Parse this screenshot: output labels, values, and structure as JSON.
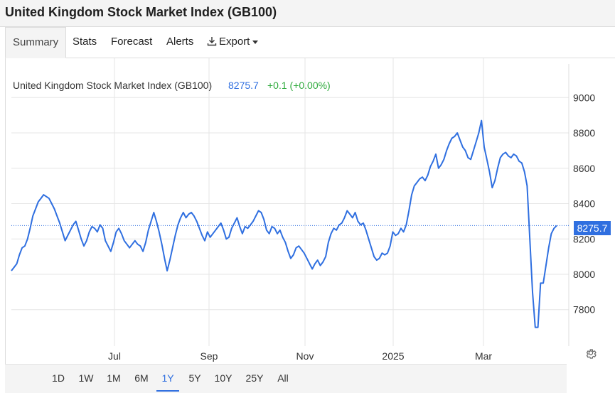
{
  "header": {
    "title": "United Kingdom Stock Market Index (GB100)"
  },
  "tabs": [
    {
      "label": "Summary",
      "active": true
    },
    {
      "label": "Stats"
    },
    {
      "label": "Forecast"
    },
    {
      "label": "Alerts"
    },
    {
      "label": "Export",
      "icon": "download-icon"
    }
  ],
  "legend": {
    "name": "United Kingdom Stock Market Index (GB100)",
    "price": "8275.7",
    "change": "+0.1 (+0.00%)"
  },
  "last_price_tag": "8275.7",
  "ranges": [
    {
      "label": "1D"
    },
    {
      "label": "1W"
    },
    {
      "label": "1M"
    },
    {
      "label": "6M"
    },
    {
      "label": "1Y",
      "active": true
    },
    {
      "label": "5Y"
    },
    {
      "label": "10Y"
    },
    {
      "label": "25Y"
    },
    {
      "label": "All"
    }
  ],
  "colors": {
    "line": "#2f6fe0",
    "positive": "#2eaa3c",
    "grid": "#e6e6e6"
  },
  "chart_data": {
    "type": "line",
    "title": "",
    "xlabel": "",
    "ylabel": "",
    "x_ticks": [
      "Jul",
      "Sep",
      "Nov",
      "2025",
      "Mar"
    ],
    "y_ticks": [
      7800,
      8000,
      8200,
      8400,
      8600,
      8800,
      9000
    ],
    "ylim": [
      7600,
      9200
    ],
    "grid": true,
    "last_value": 8275.7,
    "series": [
      {
        "values": [
          8020,
          8040,
          8060,
          8110,
          8150,
          8160,
          8200,
          8260,
          8330,
          8370,
          8410,
          8430,
          8450,
          8440,
          8430,
          8400,
          8370,
          8330,
          8290,
          8240,
          8190,
          8220,
          8250,
          8280,
          8300,
          8250,
          8200,
          8160,
          8190,
          8240,
          8270,
          8260,
          8240,
          8280,
          8260,
          8190,
          8160,
          8130,
          8180,
          8240,
          8260,
          8230,
          8190,
          8170,
          8150,
          8170,
          8190,
          8170,
          8160,
          8130,
          8180,
          8250,
          8300,
          8350,
          8300,
          8240,
          8170,
          8090,
          8020,
          8080,
          8150,
          8220,
          8280,
          8320,
          8350,
          8320,
          8340,
          8350,
          8330,
          8300,
          8260,
          8220,
          8190,
          8240,
          8210,
          8230,
          8250,
          8270,
          8290,
          8250,
          8200,
          8210,
          8260,
          8290,
          8320,
          8270,
          8230,
          8270,
          8260,
          8280,
          8300,
          8330,
          8360,
          8350,
          8310,
          8250,
          8230,
          8270,
          8260,
          8230,
          8250,
          8210,
          8180,
          8130,
          8090,
          8110,
          8150,
          8160,
          8140,
          8120,
          8090,
          8060,
          8030,
          8060,
          8080,
          8050,
          8070,
          8100,
          8180,
          8230,
          8260,
          8250,
          8280,
          8290,
          8320,
          8360,
          8340,
          8320,
          8350,
          8300,
          8280,
          8290,
          8250,
          8200,
          8150,
          8100,
          8080,
          8090,
          8120,
          8110,
          8120,
          8160,
          8240,
          8220,
          8230,
          8260,
          8240,
          8280,
          8360,
          8450,
          8500,
          8520,
          8540,
          8550,
          8530,
          8560,
          8610,
          8640,
          8680,
          8600,
          8620,
          8650,
          8700,
          8740,
          8770,
          8780,
          8800,
          8760,
          8720,
          8700,
          8660,
          8650,
          8700,
          8750,
          8800,
          8870,
          8720,
          8650,
          8580,
          8490,
          8530,
          8600,
          8660,
          8680,
          8690,
          8670,
          8660,
          8680,
          8670,
          8640,
          8630,
          8580,
          8500,
          8200,
          7900,
          7700,
          7700,
          7950,
          7950,
          8050,
          8150,
          8230,
          8260,
          8275.7
        ]
      }
    ]
  }
}
